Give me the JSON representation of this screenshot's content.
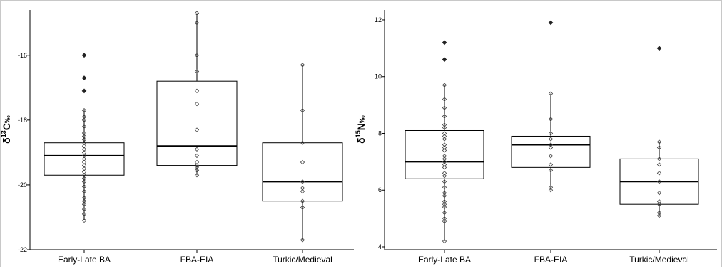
{
  "chart_data": [
    {
      "type": "box",
      "ylabel_main": "δ",
      "ylabel_sup": "13",
      "ylabel_rest": "C",
      "ylabel_unit": "‰",
      "ylim": [
        -22,
        -14.6
      ],
      "yticks": [
        -22,
        -20,
        -18,
        -16
      ],
      "ytick_labels": [
        "-22",
        "-20",
        "-18",
        "-16"
      ],
      "categories": [
        "Early-Late BA",
        "FBA-EIA",
        "Turkic/Medieval"
      ],
      "boxes": [
        {
          "category": "Early-Late BA",
          "q1": -19.7,
          "median": -19.1,
          "q3": -18.7,
          "whisker_low": -21.1,
          "whisker_high": -17.7
        },
        {
          "category": "FBA-EIA",
          "q1": -19.4,
          "median": -18.8,
          "q3": -16.8,
          "whisker_low": -19.7,
          "whisker_high": -14.7
        },
        {
          "category": "Turkic/Medieval",
          "q1": -20.5,
          "median": -19.9,
          "q3": -18.7,
          "whisker_low": -21.7,
          "whisker_high": -16.3
        }
      ],
      "points": [
        [
          -21.1,
          -20.9,
          -20.75,
          -20.6,
          -20.5,
          -20.4,
          -20.2,
          -20.05,
          -19.9,
          -19.8,
          -19.7,
          -19.6,
          -19.5,
          -19.4,
          -19.3,
          -19.2,
          -19.1,
          -19.0,
          -18.9,
          -18.8,
          -18.7,
          -18.6,
          -18.5,
          -18.4,
          -18.2,
          -18.0,
          -17.9,
          -17.7
        ],
        [
          -19.7,
          -19.55,
          -19.45,
          -19.4,
          -19.3,
          -19.1,
          -18.9,
          -18.3,
          -17.5,
          -17.1,
          -16.5,
          -16.0,
          -15.0,
          -14.7
        ],
        [
          -21.7,
          -20.7,
          -20.5,
          -20.2,
          -20.1,
          -19.9,
          -19.3,
          -18.7,
          -17.7,
          -16.3
        ]
      ],
      "outliers": [
        [
          -16.0,
          -16.7,
          -17.1
        ],
        [],
        []
      ]
    },
    {
      "type": "box",
      "ylabel_main": "δ",
      "ylabel_sup": "15",
      "ylabel_rest": "N",
      "ylabel_unit": "‰",
      "ylim": [
        3.9,
        12.35
      ],
      "yticks": [
        4,
        6,
        8,
        10,
        12
      ],
      "ytick_labels": [
        "4",
        "6",
        "8",
        "10",
        "12"
      ],
      "categories": [
        "Early-Late BA",
        "FBA-EIA",
        "Turkic/Medieval"
      ],
      "boxes": [
        {
          "category": "Early-Late BA",
          "q1": 6.4,
          "median": 7.0,
          "q3": 8.1,
          "whisker_low": 4.2,
          "whisker_high": 9.7
        },
        {
          "category": "FBA-EIA",
          "q1": 6.8,
          "median": 7.6,
          "q3": 7.9,
          "whisker_low": 6.0,
          "whisker_high": 9.4
        },
        {
          "category": "Turkic/Medieval",
          "q1": 5.5,
          "median": 6.3,
          "q3": 7.1,
          "whisker_low": 5.1,
          "whisker_high": 7.7
        }
      ],
      "points": [
        [
          4.2,
          4.9,
          5.0,
          5.2,
          5.4,
          5.5,
          5.6,
          5.8,
          5.9,
          6.1,
          6.3,
          6.5,
          6.6,
          6.8,
          6.9,
          7.0,
          7.1,
          7.2,
          7.4,
          7.5,
          7.6,
          7.8,
          7.9,
          8.0,
          8.2,
          8.3,
          8.6,
          8.9,
          9.2,
          9.7
        ],
        [
          6.0,
          6.1,
          6.7,
          6.9,
          7.2,
          7.5,
          7.6,
          7.8,
          8.0,
          8.5,
          9.4
        ],
        [
          5.1,
          5.2,
          5.5,
          5.6,
          5.9,
          6.3,
          6.6,
          6.9,
          7.1,
          7.5,
          7.7
        ]
      ],
      "outliers": [
        [
          10.6,
          11.2
        ],
        [
          11.9
        ],
        [
          11.0
        ]
      ]
    }
  ]
}
